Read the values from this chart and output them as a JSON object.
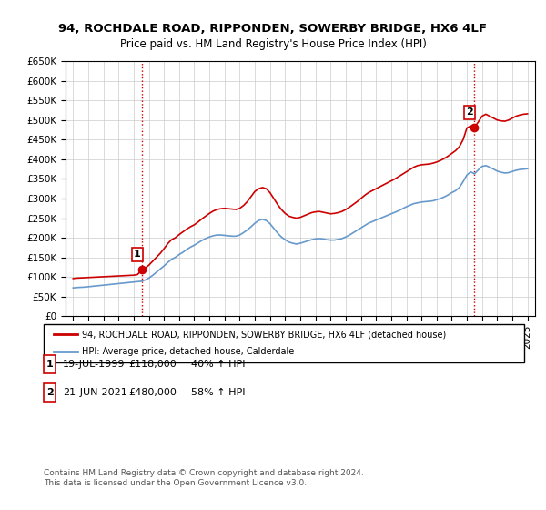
{
  "title": "94, ROCHDALE ROAD, RIPPONDEN, SOWERBY BRIDGE, HX6 4LF",
  "subtitle": "Price paid vs. HM Land Registry's House Price Index (HPI)",
  "ylabel": "",
  "background_color": "#ffffff",
  "grid_color": "#cccccc",
  "red_line_color": "#cc0000",
  "blue_line_color": "#6699cc",
  "marker1_x": 1999.54,
  "marker1_y": 118000,
  "marker1_label": "1",
  "marker2_x": 2021.47,
  "marker2_y": 480000,
  "marker2_label": "2",
  "vline1_x": 1999.54,
  "vline2_x": 2021.47,
  "vline_color": "#cc0000",
  "vline_style": ":",
  "ylim_min": 0,
  "ylim_max": 650000,
  "xlim_min": 1994.5,
  "xlim_max": 2025.5,
  "yticks": [
    0,
    50000,
    100000,
    150000,
    200000,
    250000,
    300000,
    350000,
    400000,
    450000,
    500000,
    550000,
    600000,
    650000
  ],
  "ytick_labels": [
    "£0",
    "£50K",
    "£100K",
    "£150K",
    "£200K",
    "£250K",
    "£300K",
    "£350K",
    "£400K",
    "£450K",
    "£500K",
    "£550K",
    "£600K",
    "£650K"
  ],
  "xtick_years": [
    1995,
    1996,
    1997,
    1998,
    1999,
    2000,
    2001,
    2002,
    2003,
    2004,
    2005,
    2006,
    2007,
    2008,
    2009,
    2010,
    2011,
    2012,
    2013,
    2014,
    2015,
    2016,
    2017,
    2018,
    2019,
    2020,
    2021,
    2022,
    2023,
    2024,
    2025
  ],
  "legend_red_label": "94, ROCHDALE ROAD, RIPPONDEN, SOWERBY BRIDGE, HX6 4LF (detached house)",
  "legend_blue_label": "HPI: Average price, detached house, Calderdale",
  "table_rows": [
    {
      "num": "1",
      "date": "19-JUL-1999",
      "price": "£118,000",
      "hpi": "40% ↑ HPI"
    },
    {
      "num": "2",
      "date": "21-JUN-2021",
      "price": "£480,000",
      "hpi": "58% ↑ HPI"
    }
  ],
  "footer": "Contains HM Land Registry data © Crown copyright and database right 2024.\nThis data is licensed under the Open Government Licence v3.0.",
  "red_x": [
    1995.0,
    1995.25,
    1995.5,
    1995.75,
    1996.0,
    1996.25,
    1996.5,
    1996.75,
    1997.0,
    1997.25,
    1997.5,
    1997.75,
    1998.0,
    1998.25,
    1998.5,
    1998.75,
    1999.0,
    1999.25,
    1999.54,
    1999.75,
    2000.0,
    2000.25,
    2000.5,
    2000.75,
    2001.0,
    2001.25,
    2001.5,
    2001.75,
    2002.0,
    2002.25,
    2002.5,
    2002.75,
    2003.0,
    2003.25,
    2003.5,
    2003.75,
    2004.0,
    2004.25,
    2004.5,
    2004.75,
    2005.0,
    2005.25,
    2005.5,
    2005.75,
    2006.0,
    2006.25,
    2006.5,
    2006.75,
    2007.0,
    2007.25,
    2007.5,
    2007.75,
    2008.0,
    2008.25,
    2008.5,
    2008.75,
    2009.0,
    2009.25,
    2009.5,
    2009.75,
    2010.0,
    2010.25,
    2010.5,
    2010.75,
    2011.0,
    2011.25,
    2011.5,
    2011.75,
    2012.0,
    2012.25,
    2012.5,
    2012.75,
    2013.0,
    2013.25,
    2013.5,
    2013.75,
    2014.0,
    2014.25,
    2014.5,
    2014.75,
    2015.0,
    2015.25,
    2015.5,
    2015.75,
    2016.0,
    2016.25,
    2016.5,
    2016.75,
    2017.0,
    2017.25,
    2017.5,
    2017.75,
    2018.0,
    2018.25,
    2018.5,
    2018.75,
    2019.0,
    2019.25,
    2019.5,
    2019.75,
    2020.0,
    2020.25,
    2020.5,
    2020.75,
    2021.0,
    2021.25,
    2021.47,
    2021.75,
    2022.0,
    2022.25,
    2022.5,
    2022.75,
    2023.0,
    2023.25,
    2023.5,
    2023.75,
    2024.0,
    2024.25,
    2024.5,
    2024.75,
    2025.0
  ],
  "red_y": [
    96000,
    97000,
    97500,
    98000,
    98500,
    99000,
    99500,
    100000,
    100500,
    101000,
    101500,
    102000,
    102500,
    103000,
    103500,
    104000,
    104500,
    106000,
    118000,
    122000,
    130000,
    140000,
    150000,
    160000,
    172000,
    185000,
    195000,
    200000,
    208000,
    215000,
    222000,
    228000,
    233000,
    240000,
    248000,
    255000,
    262000,
    268000,
    272000,
    274000,
    275000,
    274000,
    273000,
    272000,
    275000,
    282000,
    292000,
    305000,
    318000,
    325000,
    328000,
    325000,
    315000,
    300000,
    285000,
    272000,
    262000,
    255000,
    252000,
    250000,
    252000,
    256000,
    260000,
    264000,
    266000,
    267000,
    265000,
    263000,
    261000,
    262000,
    264000,
    267000,
    272000,
    278000,
    285000,
    292000,
    300000,
    308000,
    315000,
    320000,
    325000,
    330000,
    335000,
    340000,
    345000,
    350000,
    356000,
    362000,
    368000,
    374000,
    380000,
    384000,
    386000,
    387000,
    388000,
    390000,
    393000,
    397000,
    402000,
    408000,
    415000,
    422000,
    432000,
    450000,
    480000,
    485000,
    480000,
    495000,
    510000,
    515000,
    510000,
    505000,
    500000,
    498000,
    497000,
    500000,
    505000,
    510000,
    513000,
    515000,
    516000
  ],
  "blue_x": [
    1995.0,
    1995.25,
    1995.5,
    1995.75,
    1996.0,
    1996.25,
    1996.5,
    1996.75,
    1997.0,
    1997.25,
    1997.5,
    1997.75,
    1998.0,
    1998.25,
    1998.5,
    1998.75,
    1999.0,
    1999.25,
    1999.5,
    1999.75,
    2000.0,
    2000.25,
    2000.5,
    2000.75,
    2001.0,
    2001.25,
    2001.5,
    2001.75,
    2002.0,
    2002.25,
    2002.5,
    2002.75,
    2003.0,
    2003.25,
    2003.5,
    2003.75,
    2004.0,
    2004.25,
    2004.5,
    2004.75,
    2005.0,
    2005.25,
    2005.5,
    2005.75,
    2006.0,
    2006.25,
    2006.5,
    2006.75,
    2007.0,
    2007.25,
    2007.5,
    2007.75,
    2008.0,
    2008.25,
    2008.5,
    2008.75,
    2009.0,
    2009.25,
    2009.5,
    2009.75,
    2010.0,
    2010.25,
    2010.5,
    2010.75,
    2011.0,
    2011.25,
    2011.5,
    2011.75,
    2012.0,
    2012.25,
    2012.5,
    2012.75,
    2013.0,
    2013.25,
    2013.5,
    2013.75,
    2014.0,
    2014.25,
    2014.5,
    2014.75,
    2015.0,
    2015.25,
    2015.5,
    2015.75,
    2016.0,
    2016.25,
    2016.5,
    2016.75,
    2017.0,
    2017.25,
    2017.5,
    2017.75,
    2018.0,
    2018.25,
    2018.5,
    2018.75,
    2019.0,
    2019.25,
    2019.5,
    2019.75,
    2020.0,
    2020.25,
    2020.5,
    2020.75,
    2021.0,
    2021.25,
    2021.5,
    2021.75,
    2022.0,
    2022.25,
    2022.5,
    2022.75,
    2023.0,
    2023.25,
    2023.5,
    2023.75,
    2024.0,
    2024.25,
    2024.5,
    2024.75,
    2025.0
  ],
  "blue_y": [
    72000,
    73000,
    73500,
    74000,
    75000,
    76000,
    77000,
    78000,
    79000,
    80000,
    81000,
    82000,
    83000,
    84000,
    85000,
    86000,
    87000,
    88000,
    89000,
    92000,
    97000,
    104000,
    112000,
    120000,
    128000,
    137000,
    145000,
    150000,
    157000,
    163000,
    170000,
    176000,
    181000,
    187000,
    193000,
    198000,
    202000,
    205000,
    207000,
    207000,
    206000,
    205000,
    204000,
    204000,
    207000,
    213000,
    220000,
    228000,
    237000,
    244000,
    247000,
    244000,
    236000,
    224000,
    212000,
    202000,
    195000,
    189000,
    186000,
    184000,
    186000,
    189000,
    192000,
    195000,
    197000,
    198000,
    197000,
    195000,
    194000,
    194000,
    196000,
    198000,
    202000,
    207000,
    213000,
    219000,
    225000,
    231000,
    237000,
    241000,
    245000,
    249000,
    253000,
    257000,
    261000,
    265000,
    269000,
    274000,
    279000,
    283000,
    287000,
    289000,
    291000,
    292000,
    293000,
    294000,
    297000,
    300000,
    304000,
    309000,
    315000,
    320000,
    328000,
    343000,
    360000,
    368000,
    363000,
    373000,
    382000,
    384000,
    380000,
    375000,
    370000,
    367000,
    365000,
    366000,
    369000,
    372000,
    374000,
    375000,
    376000
  ]
}
